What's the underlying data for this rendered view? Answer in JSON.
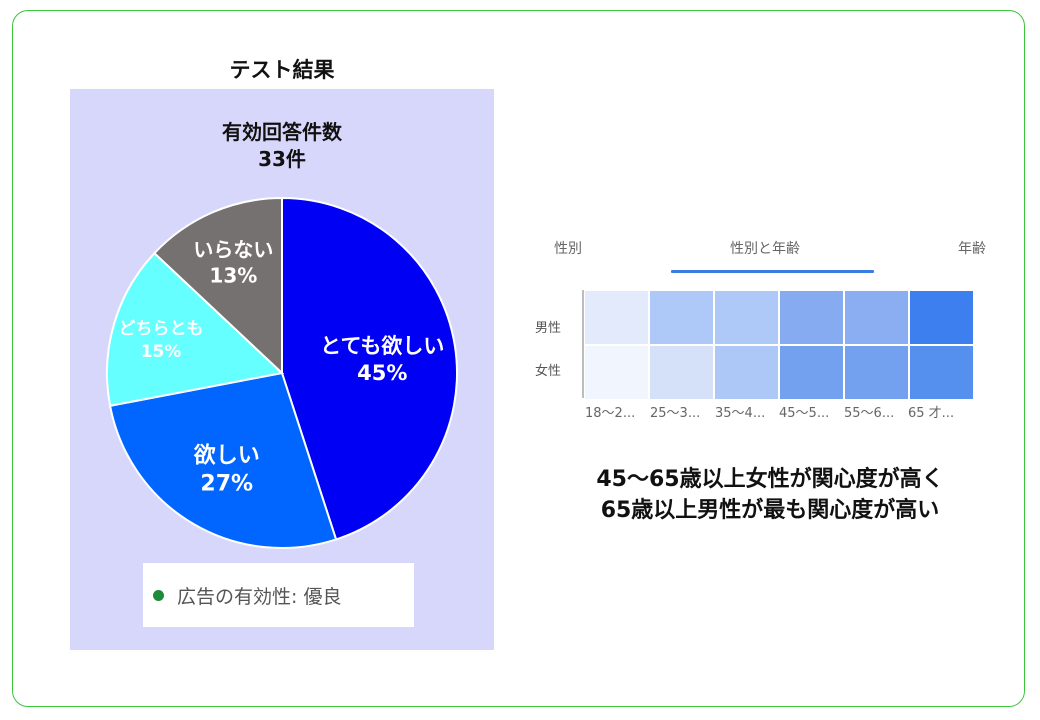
{
  "title": "テスト結果",
  "response_count": {
    "label": "有効回答件数",
    "value": "33件"
  },
  "legend": {
    "label": "広告の有効性: 優良",
    "dot_color": "#1e8a3a"
  },
  "tabs": [
    {
      "label": "性別",
      "active": false
    },
    {
      "label": "性別と年齢",
      "active": true
    },
    {
      "label": "年齢",
      "active": false
    }
  ],
  "conclusion": {
    "line1": "45〜65歳以上女性が関心度が高く",
    "line2": "65歳以上男性が最も関心度が高い"
  },
  "chart_data": [
    {
      "type": "pie",
      "title": "テスト結果",
      "subtitle": "有効回答件数 33件",
      "categories": [
        "とても欲しい",
        "欲しい",
        "どちらとも",
        "いらない"
      ],
      "values": [
        45,
        27,
        15,
        13
      ],
      "value_labels": [
        "45%",
        "27%",
        "15%",
        "13%"
      ],
      "colors": [
        "#0000f5",
        "#0066ff",
        "#66ffff",
        "#767171"
      ],
      "start_angle": "top, clockwise",
      "legend": [
        "広告の有効性: 優良"
      ]
    },
    {
      "type": "heatmap",
      "title": "性別と年齢",
      "rows": [
        "男性",
        "女性"
      ],
      "columns": [
        "18〜2...",
        "25〜3...",
        "35〜4...",
        "45〜5...",
        "55〜6...",
        "65 才..."
      ],
      "intensity": [
        [
          1,
          3,
          3,
          4,
          4,
          6
        ],
        [
          0,
          2,
          3,
          5,
          5,
          5
        ]
      ],
      "colors": [
        [
          "#e2eafb",
          "#aec8f7",
          "#aec8f7",
          "#86abf1",
          "#8baef2",
          "#3d7fee"
        ],
        [
          "#f1f5fd",
          "#d4e1f9",
          "#adc8f7",
          "#74a1ef",
          "#74a1ef",
          "#5590ef"
        ]
      ]
    }
  ]
}
